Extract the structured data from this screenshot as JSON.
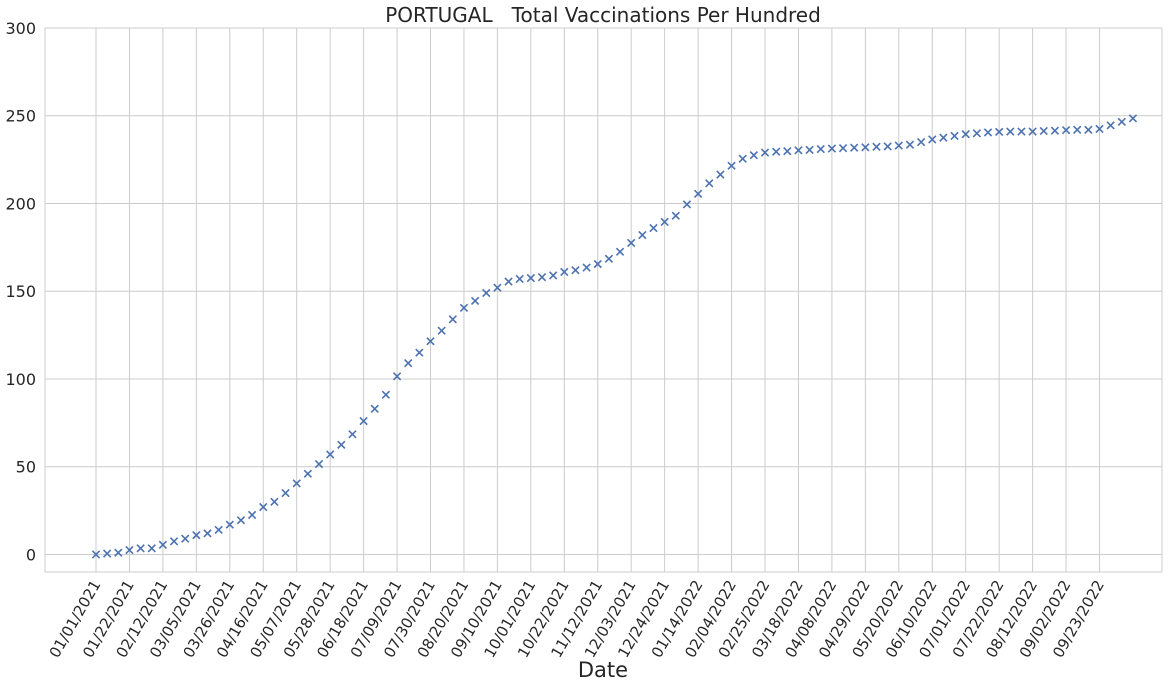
{
  "chart_data": {
    "type": "scatter",
    "title": "PORTUGAL   Total Vaccinations Per Hundred",
    "xlabel": "Date",
    "ylabel": "",
    "ylim": [
      -10,
      300
    ],
    "yticks": [
      0,
      50,
      100,
      150,
      200,
      250,
      300
    ],
    "grid": true,
    "marker": "x",
    "marker_color": "#4c72b0",
    "x_tick_labels": [
      "01/01/2021",
      "01/22/2021",
      "02/12/2021",
      "03/05/2021",
      "03/26/2021",
      "04/16/2021",
      "05/07/2021",
      "05/28/2021",
      "06/18/2021",
      "07/09/2021",
      "07/30/2021",
      "08/20/2021",
      "09/10/2021",
      "10/01/2021",
      "10/22/2021",
      "11/12/2021",
      "12/03/2021",
      "12/24/2021",
      "01/14/2022",
      "02/04/2022",
      "02/25/2022",
      "03/18/2022",
      "04/08/2022",
      "04/29/2022",
      "05/20/2022",
      "06/10/2022",
      "07/01/2022",
      "07/22/2022",
      "08/12/2022",
      "09/02/2022",
      "09/23/2022"
    ],
    "points_per_tick": 3,
    "y": [
      0,
      0.5,
      1,
      2.5,
      3.5,
      3.5,
      5.5,
      7.5,
      9,
      11,
      12,
      14,
      17,
      19.5,
      22.5,
      27,
      30,
      35,
      40.5,
      46,
      51.5,
      57,
      62.5,
      68.5,
      76,
      83,
      91,
      101.5,
      109,
      115,
      121.5,
      127.5,
      134,
      140.5,
      144.5,
      149,
      152,
      155.5,
      157,
      157.5,
      158,
      159,
      161,
      162,
      163.5,
      165.5,
      168.5,
      172.5,
      177.5,
      182,
      186,
      189.5,
      193,
      199.5,
      205.5,
      211.5,
      216.5,
      221.5,
      225.5,
      227.5,
      229,
      229.5,
      229.8,
      230.3,
      230.5,
      231,
      231.3,
      231.5,
      231.8,
      232,
      232.3,
      232.5,
      233,
      233.5,
      235,
      236.5,
      237.5,
      238.5,
      239.5,
      240,
      240.5,
      240.8,
      241,
      241,
      241,
      241.3,
      241.5,
      241.8,
      242,
      242,
      242.5,
      244.5,
      246.5,
      248.5
    ]
  }
}
